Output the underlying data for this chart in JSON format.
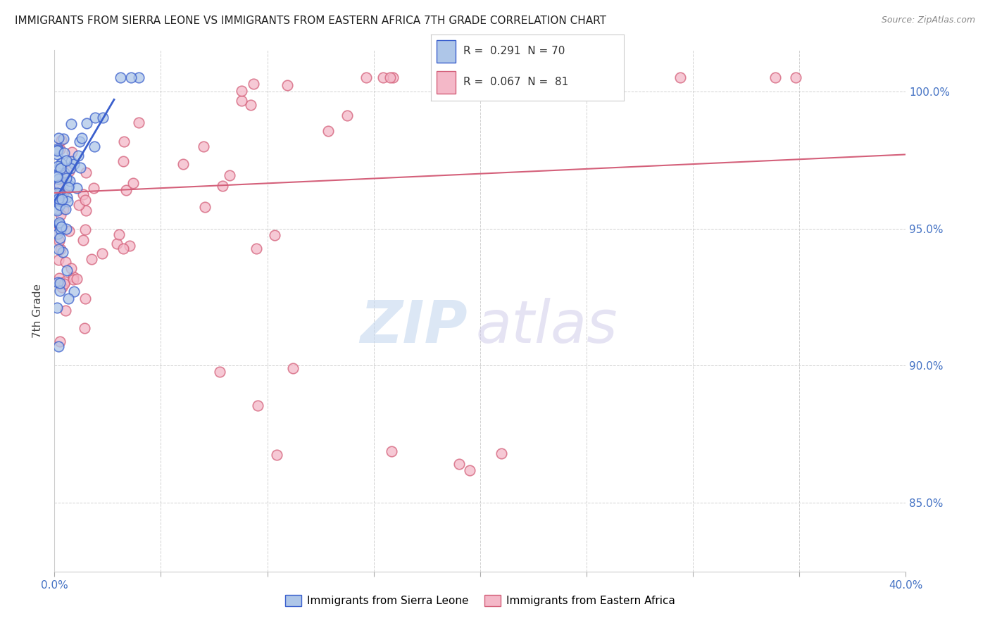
{
  "title": "IMMIGRANTS FROM SIERRA LEONE VS IMMIGRANTS FROM EASTERN AFRICA 7TH GRADE CORRELATION CHART",
  "source": "Source: ZipAtlas.com",
  "ylabel": "7th Grade",
  "color_sl": "#aec6e8",
  "color_ea": "#f4b8c8",
  "line_color_sl": "#3a5fcd",
  "line_color_ea": "#d4607a",
  "legend_label_sl": "Immigrants from Sierra Leone",
  "legend_label_ea": "Immigrants from Eastern Africa",
  "r_sl": "R =  0.291  N = 70",
  "r_ea": "R =  0.067  N =  81",
  "r_sl_val": 0.291,
  "r_ea_val": 0.067,
  "n_sl": 70,
  "n_ea": 81,
  "xlim": [
    0.0,
    0.4
  ],
  "ylim": [
    0.825,
    1.015
  ],
  "ytick_vals": [
    0.85,
    0.9,
    0.95,
    1.0
  ],
  "ytick_labels": [
    "85.0%",
    "90.0%",
    "95.0%",
    "100.0%"
  ],
  "xtick_vals": [
    0.0,
    0.05,
    0.1,
    0.15,
    0.2,
    0.25,
    0.3,
    0.35,
    0.4
  ],
  "sl_line_x": [
    0.0,
    0.028
  ],
  "sl_line_y": [
    0.96,
    0.997
  ],
  "ea_line_x": [
    0.0,
    0.4
  ],
  "ea_line_y": [
    0.963,
    0.977
  ],
  "watermark_zip": "ZIP",
  "watermark_atlas": "atlas"
}
